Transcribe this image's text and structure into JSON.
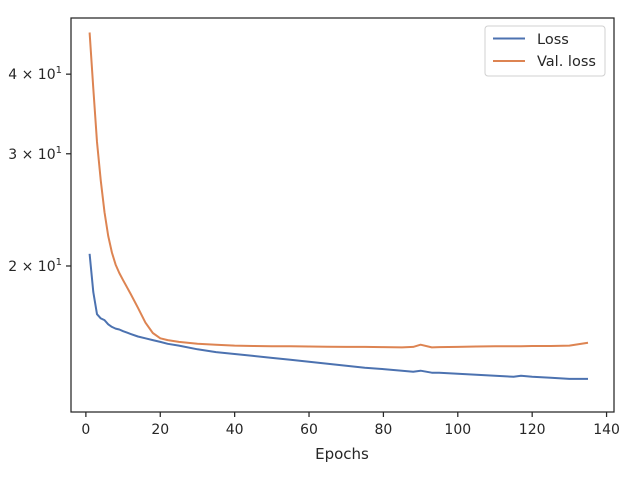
{
  "chart_data": {
    "type": "line",
    "xlabel": "Epochs",
    "ylabel": "",
    "xlim": [
      -4,
      142
    ],
    "ylim": [
      11.8,
      49.0
    ],
    "yscale": "log",
    "grid": false,
    "legend_position": "top-right",
    "x_ticks": [
      0,
      20,
      40,
      60,
      80,
      100,
      120,
      140
    ],
    "x_tick_labels": [
      "0",
      "20",
      "40",
      "60",
      "80",
      "100",
      "120",
      "140"
    ],
    "y_ticks": [
      20,
      30,
      40
    ],
    "y_tick_labels": [
      "2 × 10",
      "3 × 10",
      "4 × 10"
    ],
    "y_tick_exponent": "1",
    "series": [
      {
        "name": "Loss",
        "color": "#4c72b0",
        "x": [
          1,
          2,
          3,
          4,
          5,
          6,
          7,
          8,
          9,
          10,
          12,
          14,
          16,
          18,
          20,
          22,
          25,
          30,
          35,
          40,
          45,
          50,
          55,
          60,
          65,
          70,
          75,
          80,
          85,
          88,
          90,
          93,
          95,
          100,
          105,
          110,
          115,
          117,
          120,
          125,
          130,
          135
        ],
        "y": [
          20.9,
          18.2,
          16.8,
          16.55,
          16.45,
          16.2,
          16.05,
          15.95,
          15.9,
          15.8,
          15.65,
          15.5,
          15.4,
          15.3,
          15.2,
          15.1,
          15.0,
          14.8,
          14.65,
          14.55,
          14.45,
          14.35,
          14.25,
          14.15,
          14.05,
          13.95,
          13.85,
          13.78,
          13.7,
          13.65,
          13.7,
          13.6,
          13.6,
          13.55,
          13.5,
          13.45,
          13.4,
          13.45,
          13.4,
          13.35,
          13.3,
          13.3
        ]
      },
      {
        "name": "Val. loss",
        "color": "#dd8452",
        "x": [
          1,
          2,
          3,
          4,
          5,
          6,
          7,
          8,
          9,
          10,
          12,
          14,
          16,
          18,
          20,
          22,
          25,
          30,
          35,
          40,
          45,
          50,
          55,
          60,
          65,
          70,
          75,
          80,
          85,
          88,
          90,
          93,
          95,
          100,
          105,
          110,
          115,
          117,
          120,
          125,
          130,
          135
        ],
        "y": [
          46.5,
          38.0,
          31.3,
          27.2,
          24.3,
          22.3,
          21.0,
          20.1,
          19.5,
          19.0,
          18.1,
          17.2,
          16.3,
          15.7,
          15.4,
          15.3,
          15.2,
          15.1,
          15.05,
          15.0,
          14.98,
          14.97,
          14.96,
          14.95,
          14.94,
          14.93,
          14.93,
          14.92,
          14.9,
          14.93,
          15.05,
          14.9,
          14.92,
          14.93,
          14.95,
          14.96,
          14.97,
          14.97,
          14.98,
          14.98,
          15.0,
          15.15
        ]
      }
    ]
  }
}
